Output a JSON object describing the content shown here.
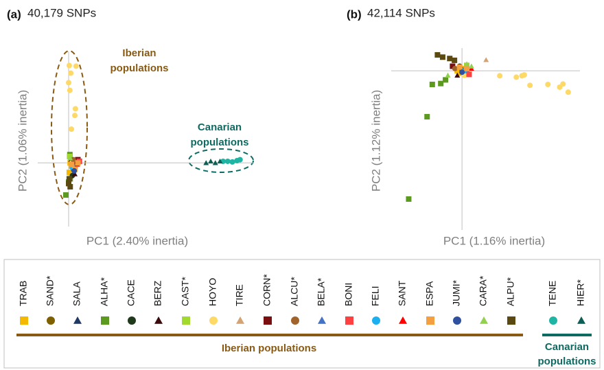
{
  "chart_data": [
    {
      "type": "scatter",
      "panel": "(a)",
      "title": "40,179 SNPs",
      "xlabel": "PC1 (2.40% inertia)",
      "ylabel": "PC2 (1.06% inertia)",
      "xlim": [
        -1,
        6
      ],
      "ylim": [
        -2,
        3.5
      ],
      "annotations": [
        {
          "lines": [
            "Iberian",
            "populations"
          ],
          "group": "iberian"
        },
        {
          "lines": [
            "Canarian",
            "populations"
          ],
          "group": "canarian"
        }
      ],
      "series": [
        {
          "color": "#f5b800",
          "marker": "square",
          "x": [
            0.05,
            0.1,
            0.02
          ],
          "y": [
            0.0,
            -0.1,
            -0.3
          ]
        },
        {
          "color": "#7f6000",
          "marker": "circle",
          "x": [
            0.15
          ],
          "y": [
            -0.2
          ]
        },
        {
          "color": "#1f3864",
          "marker": "triangle",
          "x": [
            0.1
          ],
          "y": [
            0.05
          ]
        },
        {
          "color": "#5b9a1f",
          "marker": "square",
          "x": [
            0.04,
            -0.09,
            0.0,
            0.05
          ],
          "y": [
            0.26,
            -1.01,
            -0.6,
            -0.5
          ]
        },
        {
          "color": "#1e3a1a",
          "marker": "circle",
          "x": [
            0.12
          ],
          "y": [
            -0.4
          ]
        },
        {
          "color": "#3c0a0a",
          "marker": "triangle",
          "x": [
            0.2,
            0.08
          ],
          "y": [
            -0.35,
            0.1
          ]
        },
        {
          "color": "#a2d92e",
          "marker": "square",
          "x": [
            0.03
          ],
          "y": [
            0.2
          ]
        },
        {
          "color": "#ffd966",
          "marker": "circle",
          "x": [
            0.02,
            0.24,
            0.07,
            0.0,
            0.04,
            0.22,
            0.2,
            0.09,
            0.1
          ],
          "y": [
            3.06,
            3.04,
            2.82,
            2.52,
            2.28,
            1.7,
            1.49,
            1.06,
            0.0
          ]
        },
        {
          "color": "#d4a373",
          "marker": "triangle",
          "x": [
            0.25
          ],
          "y": [
            0.05
          ]
        },
        {
          "color": "#7b0f0f",
          "marker": "square",
          "x": [
            0.3,
            0.2
          ],
          "y": [
            0.1,
            0.0
          ]
        },
        {
          "color": "#a0642a",
          "marker": "circle",
          "x": [
            0.15
          ],
          "y": [
            0.1
          ]
        },
        {
          "color": "#4472c4",
          "marker": "triangle",
          "x": [
            0.22
          ],
          "y": [
            -0.1
          ]
        },
        {
          "color": "#ff4040",
          "marker": "square",
          "x": [
            0.35
          ],
          "y": [
            0.05
          ]
        },
        {
          "color": "#1ab0f0",
          "marker": "circle",
          "x": [
            0.12
          ],
          "y": [
            -0.15
          ]
        },
        {
          "color": "#ff0000",
          "marker": "triangle",
          "x": [
            0.28
          ],
          "y": [
            -0.05
          ]
        },
        {
          "color": "#f4a040",
          "marker": "square",
          "x": [
            0.1,
            0.3,
            0.2
          ],
          "y": [
            -0.05,
            0.0,
            -0.2
          ]
        },
        {
          "color": "#2f4f9f",
          "marker": "circle",
          "x": [
            0.18
          ],
          "y": [
            -0.25
          ]
        },
        {
          "color": "#92d050",
          "marker": "triangle",
          "x": [
            0.05
          ],
          "y": [
            0.15
          ]
        },
        {
          "color": "#5a4a12",
          "marker": "square",
          "x": [
            0.0,
            0.02,
            0.05
          ],
          "y": [
            -0.65,
            -0.5,
            -0.75
          ]
        },
        {
          "color": "#1fb5a5",
          "marker": "circle",
          "x": [
            5.0,
            5.15,
            5.3,
            5.45,
            5.55
          ],
          "y": [
            0.05,
            0.05,
            0.03,
            0.07,
            0.1
          ]
        },
        {
          "color": "#0d5f55",
          "marker": "triangle",
          "x": [
            4.45,
            4.6,
            4.75,
            4.9
          ],
          "y": [
            0.0,
            0.05,
            0.0,
            0.05
          ]
        }
      ]
    },
    {
      "type": "scatter",
      "panel": "(b)",
      "title": "42,114 SNPs",
      "xlabel": "PC1 (1.16% inertia)",
      "ylabel": "PC2 (1.12% inertia)",
      "xlim": [
        -1.5,
        2.5
      ],
      "ylim": [
        -3.5,
        0.5
      ],
      "series": [
        {
          "color": "#f5b800",
          "marker": "square",
          "x": [
            -0.1,
            0.05,
            -0.05
          ],
          "y": [
            0.0,
            0.05,
            -0.05
          ]
        },
        {
          "color": "#7f6000",
          "marker": "circle",
          "x": [
            0.0
          ],
          "y": [
            0.02
          ]
        },
        {
          "color": "#1f3864",
          "marker": "triangle",
          "x": [
            0.08
          ],
          "y": [
            -0.05
          ]
        },
        {
          "color": "#5b9a1f",
          "marker": "square",
          "x": [
            -1.13,
            -0.74,
            -0.63,
            -0.45,
            -0.35
          ],
          "y": [
            -2.82,
            -1.01,
            -0.3,
            -0.28,
            -0.2
          ]
        },
        {
          "color": "#1e3a1a",
          "marker": "circle",
          "x": [
            -0.05
          ],
          "y": [
            0.1
          ]
        },
        {
          "color": "#3c0a0a",
          "marker": "triangle",
          "x": [
            -0.1
          ],
          "y": [
            -0.1
          ]
        },
        {
          "color": "#a2d92e",
          "marker": "square",
          "x": [
            0.1
          ],
          "y": [
            0.12
          ]
        },
        {
          "color": "#ffd966",
          "marker": "circle",
          "x": [
            0.8,
            1.15,
            1.27,
            1.32,
            1.44,
            1.82,
            2.07,
            2.14,
            2.25,
            0.15,
            0.05
          ],
          "y": [
            -0.11,
            -0.14,
            -0.11,
            -0.09,
            -0.32,
            -0.3,
            -0.36,
            -0.29,
            -0.47,
            -0.02,
            -0.1
          ]
        },
        {
          "color": "#d4a373",
          "marker": "triangle",
          "x": [
            0.51
          ],
          "y": [
            0.24
          ]
        },
        {
          "color": "#7b0f0f",
          "marker": "square",
          "x": [
            -0.2
          ],
          "y": [
            0.1
          ]
        },
        {
          "color": "#a0642a",
          "marker": "circle",
          "x": [
            -0.15
          ],
          "y": [
            0.05
          ]
        },
        {
          "color": "#4472c4",
          "marker": "triangle",
          "x": [
            0.12
          ],
          "y": [
            0.0
          ]
        },
        {
          "color": "#ff4040",
          "marker": "square",
          "x": [
            0.15
          ],
          "y": [
            -0.08
          ]
        },
        {
          "color": "#1ab0f0",
          "marker": "circle",
          "x": [
            0.05
          ],
          "y": [
            0.0
          ]
        },
        {
          "color": "#ff0000",
          "marker": "triangle",
          "x": [
            0.2
          ],
          "y": [
            0.05
          ]
        },
        {
          "color": "#f4a040",
          "marker": "square",
          "x": [
            -0.05,
            0.1
          ],
          "y": [
            0.08,
            0.05
          ]
        },
        {
          "color": "#2f4f9f",
          "marker": "circle",
          "x": [
            0.0
          ],
          "y": [
            -0.03
          ]
        },
        {
          "color": "#92d050",
          "marker": "triangle",
          "x": [
            0.1,
            0.2,
            -0.3
          ],
          "y": [
            0.15,
            0.1,
            -0.1
          ]
        },
        {
          "color": "#5a4a12",
          "marker": "square",
          "x": [
            -0.52,
            -0.41,
            -0.26,
            -0.16
          ],
          "y": [
            0.35,
            0.3,
            0.27,
            0.23
          ]
        }
      ]
    }
  ],
  "legend": {
    "populations": [
      {
        "name": "TRAB",
        "color": "#f5b800",
        "marker": "square"
      },
      {
        "name": "SAND*",
        "color": "#7f6000",
        "marker": "circle"
      },
      {
        "name": "SALA",
        "color": "#1f3864",
        "marker": "triangle"
      },
      {
        "name": "ALHA*",
        "color": "#5b9a1f",
        "marker": "square"
      },
      {
        "name": "CACE",
        "color": "#1e3a1a",
        "marker": "circle"
      },
      {
        "name": "BERZ",
        "color": "#3c0a0a",
        "marker": "triangle"
      },
      {
        "name": "CAST*",
        "color": "#a2d92e",
        "marker": "square"
      },
      {
        "name": "HOYO",
        "color": "#ffd966",
        "marker": "circle"
      },
      {
        "name": "TIRE",
        "color": "#d4a373",
        "marker": "triangle"
      },
      {
        "name": "CORN*",
        "color": "#7b0f0f",
        "marker": "square"
      },
      {
        "name": "ALCU*",
        "color": "#a0642a",
        "marker": "circle"
      },
      {
        "name": "BELA*",
        "color": "#4472c4",
        "marker": "triangle"
      },
      {
        "name": "BONI",
        "color": "#ff4040",
        "marker": "square"
      },
      {
        "name": "FELI",
        "color": "#1ab0f0",
        "marker": "circle"
      },
      {
        "name": "SANT",
        "color": "#ff0000",
        "marker": "triangle"
      },
      {
        "name": "ESPA",
        "color": "#f4a040",
        "marker": "square"
      },
      {
        "name": "JUMI*",
        "color": "#2f4f9f",
        "marker": "circle"
      },
      {
        "name": "CARA*",
        "color": "#92d050",
        "marker": "triangle"
      },
      {
        "name": "ALPU*",
        "color": "#5a4a12",
        "marker": "square"
      },
      {
        "name": "TENE",
        "color": "#1fb5a5",
        "marker": "circle"
      },
      {
        "name": "HIER*",
        "color": "#0d5f55",
        "marker": "triangle"
      }
    ],
    "groups": [
      {
        "label": "Iberian populations"
      },
      {
        "lines": [
          "Canarian",
          "populations"
        ]
      }
    ]
  }
}
